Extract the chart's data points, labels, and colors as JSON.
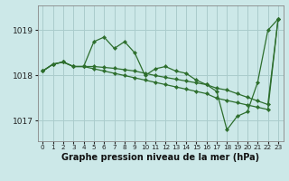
{
  "background_color": "#cce8e8",
  "grid_color": "#aacccc",
  "line_color": "#2d6e2d",
  "marker_color": "#2d6e2d",
  "title": "Graphe pression niveau de la mer (hPa)",
  "title_fontsize": 7.0,
  "xlim": [
    -0.5,
    23.5
  ],
  "ylim": [
    1016.55,
    1019.55
  ],
  "yticks": [
    1017,
    1018,
    1019
  ],
  "ytick_fontsize": 6.5,
  "xtick_fontsize": 5.2,
  "xticks": [
    0,
    1,
    2,
    3,
    4,
    5,
    6,
    7,
    8,
    9,
    10,
    11,
    12,
    13,
    14,
    15,
    16,
    17,
    18,
    19,
    20,
    21,
    22,
    23
  ],
  "series": [
    [
      1018.1,
      1018.25,
      1018.3,
      1018.2,
      1018.2,
      1018.75,
      1018.85,
      1018.6,
      1018.75,
      1018.5,
      1018.0,
      1018.15,
      1018.2,
      1018.1,
      1018.05,
      1017.9,
      1017.8,
      1017.65,
      1016.8,
      1017.1,
      1017.2,
      1017.85,
      1019.0,
      1019.25
    ],
    [
      1018.1,
      1018.25,
      1018.3,
      1018.2,
      1018.2,
      1018.2,
      1018.18,
      1018.16,
      1018.13,
      1018.1,
      1018.05,
      1018.0,
      1017.96,
      1017.92,
      1017.88,
      1017.84,
      1017.8,
      1017.72,
      1017.68,
      1017.6,
      1017.52,
      1017.44,
      1017.36,
      1019.25
    ],
    [
      1018.1,
      1018.25,
      1018.3,
      1018.2,
      1018.2,
      1018.15,
      1018.1,
      1018.05,
      1018.0,
      1017.95,
      1017.9,
      1017.85,
      1017.8,
      1017.75,
      1017.7,
      1017.65,
      1017.6,
      1017.5,
      1017.45,
      1017.4,
      1017.35,
      1017.3,
      1017.25,
      1019.25
    ]
  ]
}
